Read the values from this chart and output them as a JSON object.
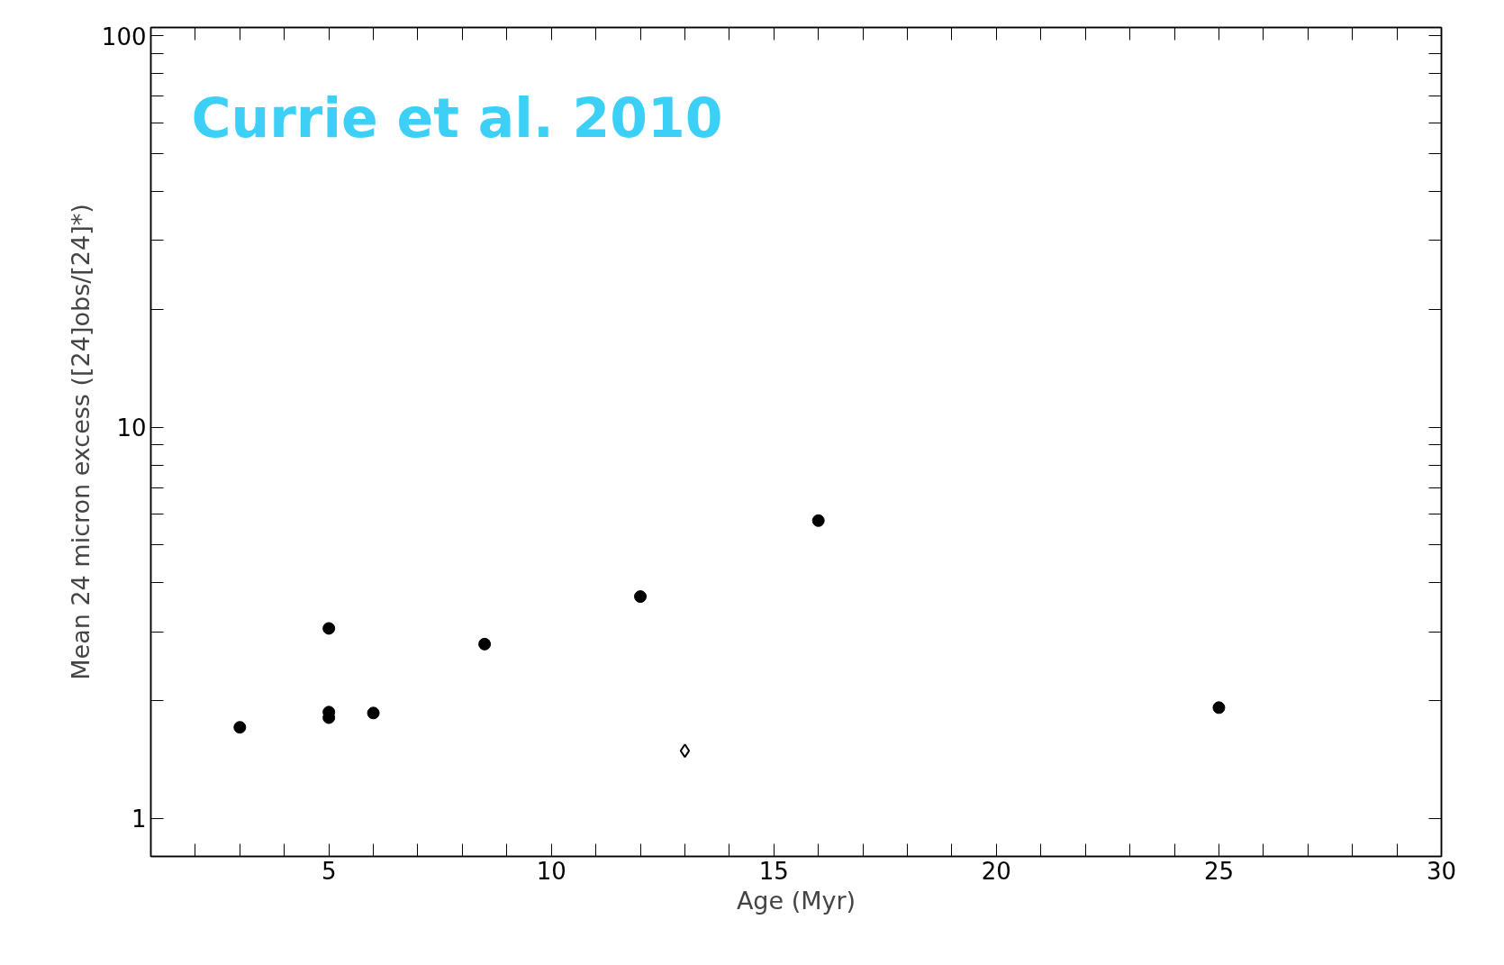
{
  "chart_data": {
    "type": "scatter",
    "xlabel": "Age (Myr)",
    "ylabel": "Mean 24 micron excess ([24]obs/[24]*)",
    "annotations": [
      "Currie et al. 2010"
    ],
    "log": "y",
    "grid": false,
    "xlim": [
      1,
      30
    ],
    "ylim": [
      0.8,
      105
    ],
    "xticks": [
      {
        "value": 2,
        "label": null
      },
      {
        "value": 3,
        "label": null
      },
      {
        "value": 4,
        "label": null
      },
      5,
      {
        "value": 6,
        "label": null
      },
      {
        "value": 7,
        "label": null
      },
      {
        "value": 8,
        "label": null
      },
      {
        "value": 9,
        "label": null
      },
      10,
      {
        "value": 11,
        "label": null
      },
      {
        "value": 12,
        "label": null
      },
      {
        "value": 13,
        "label": null
      },
      {
        "value": 14,
        "label": null
      },
      15,
      {
        "value": 16,
        "label": null
      },
      {
        "value": 17,
        "label": null
      },
      {
        "value": 18,
        "label": null
      },
      {
        "value": 19,
        "label": null
      },
      20,
      {
        "value": 21,
        "label": null
      },
      {
        "value": 22,
        "label": null
      },
      {
        "value": 23,
        "label": null
      },
      {
        "value": 24,
        "label": null
      },
      25,
      {
        "value": 26,
        "label": null
      },
      {
        "value": 27,
        "label": null
      },
      {
        "value": 28,
        "label": null
      },
      {
        "value": 29,
        "label": null
      },
      30
    ],
    "yticks": [
      1,
      {
        "value": 2,
        "label": null
      },
      {
        "value": 3,
        "label": null
      },
      {
        "value": 4,
        "label": null
      },
      {
        "value": 5,
        "label": null
      },
      {
        "value": 6,
        "label": null
      },
      {
        "value": 7,
        "label": null
      },
      {
        "value": 8,
        "label": null
      },
      {
        "value": 9,
        "label": null
      },
      10,
      {
        "value": 20,
        "label": null
      },
      {
        "value": 30,
        "label": null
      },
      {
        "value": 40,
        "label": null
      },
      {
        "value": 50,
        "label": null
      },
      {
        "value": 60,
        "label": null
      },
      {
        "value": 70,
        "label": null
      },
      {
        "value": 80,
        "label": null
      },
      {
        "value": 90,
        "label": null
      },
      100
    ],
    "series": [
      {
        "color": "#000000",
        "marker": "circle",
        "x": [
          3,
          5,
          5,
          5,
          6,
          8.5,
          12,
          16,
          25
        ],
        "values": [
          1.71,
          3.06,
          1.87,
          1.81,
          1.86,
          2.79,
          3.69,
          5.77,
          1.92
        ]
      },
      {
        "color": "#000000",
        "marker": "diamond",
        "x": [
          13
        ],
        "values": [
          1.49
        ]
      }
    ]
  }
}
